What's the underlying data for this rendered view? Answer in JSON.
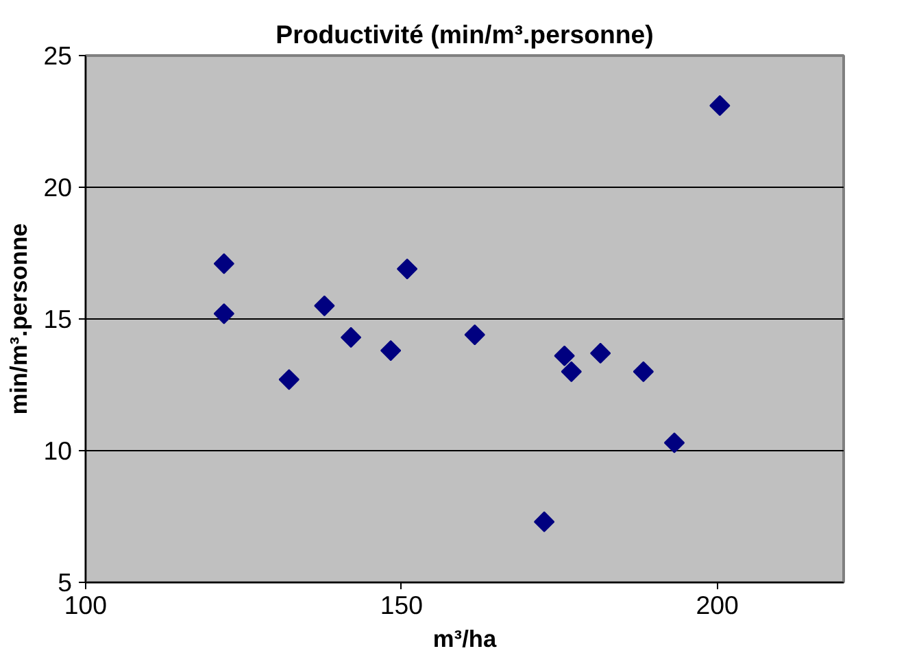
{
  "chart_data": {
    "type": "scatter",
    "title": "Productivité (min/m³.personne)",
    "xlabel": "m³/ha",
    "ylabel": "min/m³.personne",
    "x": [
      121.9,
      121.9,
      132.2,
      137.8,
      142.0,
      148.3,
      150.9,
      161.6,
      172.6,
      175.8,
      176.9,
      181.5,
      188.3,
      193.2,
      200.4
    ],
    "series": [
      {
        "color": "#000080",
        "values": [
          17.1,
          15.2,
          12.7,
          15.5,
          14.3,
          13.8,
          16.9,
          14.4,
          7.3,
          13.6,
          13.0,
          13.7,
          13.0,
          10.3,
          23.1
        ]
      }
    ],
    "xlim": [
      100,
      220
    ],
    "xticks": [
      100,
      150,
      200
    ],
    "ylim": [
      5,
      25
    ],
    "yticks": [
      5,
      10,
      15,
      20,
      25
    ],
    "grid": "y",
    "marker": "diamond"
  }
}
